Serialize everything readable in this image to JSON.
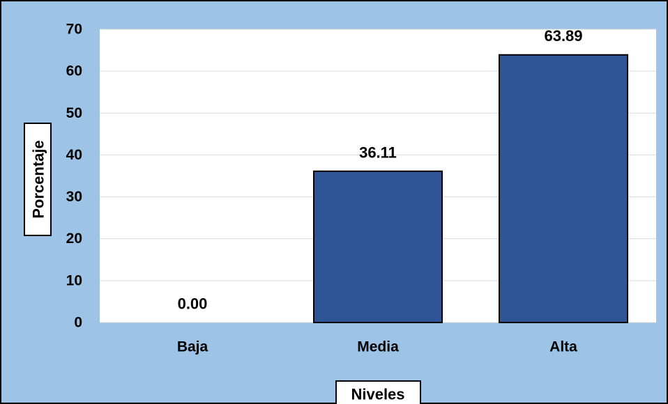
{
  "chart_data": {
    "type": "bar",
    "categories": [
      "Baja",
      "Media",
      "Alta"
    ],
    "values": [
      0.0,
      36.11,
      63.89
    ],
    "value_labels": [
      "0.00",
      "36.11",
      "63.89"
    ],
    "xlabel": "Niveles",
    "ylabel": "Porcentaje",
    "ylim": [
      0,
      70
    ],
    "yticks": [
      0,
      10,
      20,
      30,
      40,
      50,
      60,
      70
    ],
    "grid": true,
    "legend": "none",
    "colors": {
      "bar": "#2f5597",
      "plot_background": "#ffffff",
      "chart_background": "#9dc3e6",
      "gridline": "#d9d9d9"
    }
  }
}
